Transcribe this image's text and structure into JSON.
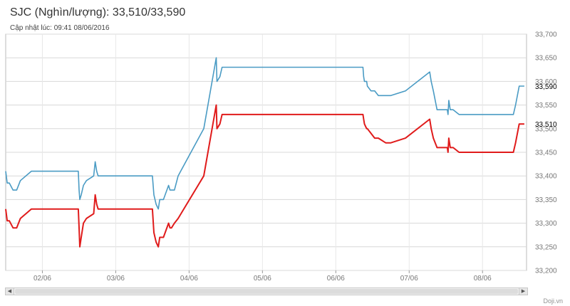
{
  "header": {
    "title": "SJC (Nghìn/lượng): 33,510/33,590",
    "updated": "Cập nhật lúc: 09:41 08/06/2016"
  },
  "footer": {
    "credit": "Doji.vn"
  },
  "chart_data": {
    "type": "line",
    "ylim": [
      33200,
      33700
    ],
    "yticks": [
      33200,
      33250,
      33300,
      33350,
      33400,
      33450,
      33500,
      33550,
      33600,
      33650,
      33700
    ],
    "ytick_labels": [
      "33,200",
      "33,250",
      "33,300",
      "33,350",
      "33,400",
      "33,450",
      "33,500",
      "33,550",
      "33,600",
      "33,650",
      "33,700"
    ],
    "xlim": [
      1.5,
      8.6
    ],
    "xticks": [
      2,
      3,
      4,
      5,
      6,
      7,
      8
    ],
    "xtick_labels": [
      "02/06",
      "03/06",
      "04/06",
      "05/06",
      "06/06",
      "07/06",
      "08/06"
    ],
    "grid": true,
    "series": [
      {
        "color": "#4a9bc4",
        "last_label": "33,590",
        "x": [
          1.5,
          1.52,
          1.55,
          1.6,
          1.65,
          1.7,
          1.85,
          2.2,
          2.49,
          2.5,
          2.51,
          2.53,
          2.56,
          2.6,
          2.7,
          2.72,
          2.74,
          2.76,
          3.0,
          3.25,
          3.5,
          3.52,
          3.55,
          3.58,
          3.6,
          3.62,
          3.65,
          3.72,
          3.74,
          3.76,
          3.8,
          3.85,
          4.2,
          4.37,
          4.38,
          4.42,
          4.45,
          4.5,
          5.0,
          5.5,
          5.9,
          6.37,
          6.38,
          6.39,
          6.42,
          6.43,
          6.48,
          6.53,
          6.58,
          6.68,
          6.75,
          6.95,
          7.28,
          7.3,
          7.33,
          7.38,
          7.52,
          7.53,
          7.54,
          7.56,
          7.6,
          7.68,
          7.72,
          7.9,
          8.2,
          8.42,
          8.45,
          8.5,
          8.57
        ],
        "y": [
          33410,
          33385,
          33385,
          33370,
          33370,
          33390,
          33410,
          33410,
          33410,
          33370,
          33350,
          33360,
          33380,
          33390,
          33400,
          33430,
          33410,
          33400,
          33400,
          33400,
          33400,
          33360,
          33340,
          33330,
          33350,
          33350,
          33350,
          33380,
          33370,
          33370,
          33370,
          33400,
          33500,
          33650,
          33600,
          33610,
          33630,
          33630,
          33630,
          33630,
          33630,
          33630,
          33610,
          33600,
          33600,
          33590,
          33580,
          33580,
          33570,
          33570,
          33570,
          33580,
          33620,
          33600,
          33580,
          33540,
          33540,
          33530,
          33560,
          33540,
          33540,
          33530,
          33530,
          33530,
          33530,
          33530,
          33550,
          33590,
          33590
        ]
      },
      {
        "color": "#e01b1b",
        "last_label": "33,510",
        "x": [
          1.5,
          1.52,
          1.55,
          1.6,
          1.65,
          1.7,
          1.85,
          2.2,
          2.49,
          2.5,
          2.51,
          2.53,
          2.56,
          2.6,
          2.7,
          2.72,
          2.74,
          2.76,
          3.0,
          3.25,
          3.5,
          3.52,
          3.55,
          3.58,
          3.6,
          3.62,
          3.65,
          3.72,
          3.74,
          3.76,
          3.8,
          3.85,
          4.2,
          4.37,
          4.38,
          4.42,
          4.45,
          4.5,
          5.0,
          5.5,
          5.9,
          6.37,
          6.38,
          6.39,
          6.42,
          6.43,
          6.48,
          6.53,
          6.58,
          6.68,
          6.75,
          6.95,
          7.28,
          7.3,
          7.33,
          7.38,
          7.52,
          7.53,
          7.54,
          7.56,
          7.6,
          7.68,
          7.72,
          7.9,
          8.2,
          8.42,
          8.45,
          8.5,
          8.57
        ],
        "y": [
          33330,
          33305,
          33305,
          33290,
          33290,
          33310,
          33330,
          33330,
          33330,
          33290,
          33250,
          33270,
          33300,
          33310,
          33320,
          33360,
          33340,
          33330,
          33330,
          33330,
          33330,
          33280,
          33260,
          33250,
          33270,
          33270,
          33270,
          33300,
          33290,
          33290,
          33300,
          33310,
          33400,
          33550,
          33500,
          33510,
          33530,
          33530,
          33530,
          33530,
          33530,
          33530,
          33520,
          33510,
          33500,
          33500,
          33490,
          33480,
          33480,
          33470,
          33470,
          33480,
          33520,
          33500,
          33480,
          33460,
          33460,
          33450,
          33480,
          33460,
          33460,
          33450,
          33450,
          33450,
          33450,
          33450,
          33470,
          33510,
          33510
        ]
      }
    ]
  }
}
